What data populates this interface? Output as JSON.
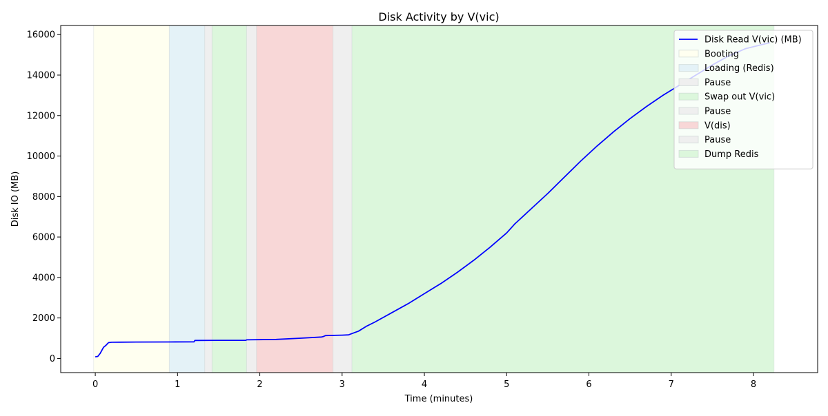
{
  "chart_data": {
    "type": "line",
    "title": "Disk Activity by V(vic)",
    "xlabel": "Time (minutes)",
    "ylabel": "Disk IO (MB)",
    "xlim": [
      -0.42,
      8.78
    ],
    "ylim": [
      -700,
      16450
    ],
    "xticks": [
      0,
      1,
      2,
      3,
      4,
      5,
      6,
      7,
      8
    ],
    "yticks": [
      0,
      2000,
      4000,
      6000,
      8000,
      10000,
      12000,
      14000,
      16000
    ],
    "grid": false,
    "legend_position": "top-right",
    "series": [
      {
        "name": "Disk Read V(vic) (MB)",
        "color": "#0000ff",
        "x": [
          0,
          0.03,
          0.06,
          0.1,
          0.13,
          0.16,
          0.2,
          0.3,
          0.5,
          0.9,
          1.2,
          1.21,
          1.5,
          1.83,
          1.84,
          2.2,
          2.5,
          2.75,
          2.77,
          2.8,
          3.0,
          3.08,
          3.1,
          3.2,
          3.3,
          3.4,
          3.6,
          3.8,
          4.0,
          4.2,
          4.4,
          4.6,
          4.8,
          5.0,
          5.1,
          5.3,
          5.5,
          5.7,
          5.9,
          6.1,
          6.3,
          6.5,
          6.7,
          6.9,
          7.1,
          7.3,
          7.5,
          7.7,
          7.9,
          8.1,
          8.2
        ],
        "y": [
          80,
          100,
          250,
          550,
          650,
          780,
          800,
          805,
          810,
          815,
          820,
          890,
          895,
          895,
          920,
          940,
          1000,
          1060,
          1080,
          1130,
          1150,
          1165,
          1200,
          1350,
          1600,
          1800,
          2250,
          2700,
          3200,
          3700,
          4250,
          4850,
          5500,
          6200,
          6650,
          7400,
          8150,
          8950,
          9750,
          10500,
          11200,
          11850,
          12450,
          13000,
          13500,
          14000,
          14500,
          14950,
          15300,
          15500,
          15600
        ]
      }
    ],
    "phases": [
      {
        "name": "Booting",
        "start": -0.02,
        "end": 0.9,
        "color": "#fffff0"
      },
      {
        "name": "Loading (Redis)",
        "start": 0.9,
        "end": 1.33,
        "color": "#e4f2f7"
      },
      {
        "name": "Pause",
        "start": 1.33,
        "end": 1.42,
        "color": "#efefef"
      },
      {
        "name": "Swap out V(vic)",
        "start": 1.42,
        "end": 1.84,
        "color": "#dcf7dc"
      },
      {
        "name": "Pause",
        "start": 1.84,
        "end": 1.96,
        "color": "#efefef"
      },
      {
        "name": "V(dis)",
        "start": 1.96,
        "end": 2.89,
        "color": "#f8d7d7"
      },
      {
        "name": "Pause",
        "start": 2.89,
        "end": 3.12,
        "color": "#efefef"
      },
      {
        "name": "Dump Redis",
        "start": 3.12,
        "end": 8.25,
        "color": "#dcf7dc"
      }
    ]
  }
}
